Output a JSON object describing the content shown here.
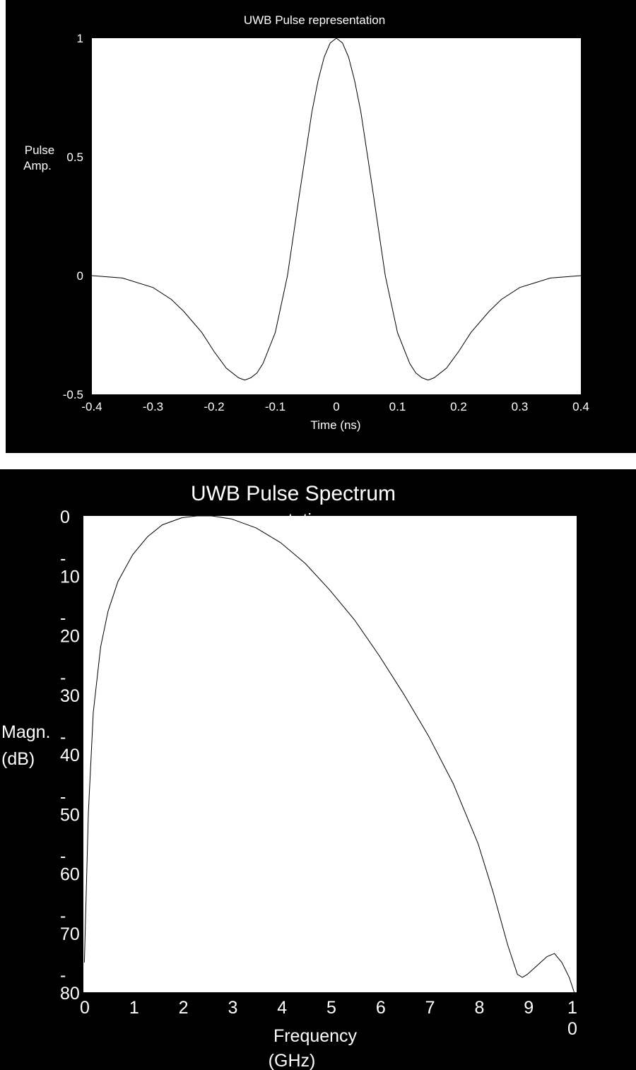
{
  "chart_data": [
    {
      "type": "line",
      "title": "UWB Pulse representation",
      "xlabel": "Time (ns)",
      "ylabel_line1": "Pulse",
      "ylabel_line2": "Amp.",
      "xlim": [
        -0.4,
        0.4
      ],
      "ylim": [
        -0.5,
        1
      ],
      "x_ticks": [
        "-0.4",
        "-0.3",
        "-0.2",
        "-0.1",
        "0",
        "0.1",
        "0.2",
        "0.3",
        "0.4"
      ],
      "y_ticks": [
        "1",
        "0.5",
        "0",
        "-0.5"
      ],
      "series": [
        {
          "x": [
            -0.4,
            -0.35,
            -0.3,
            -0.27,
            -0.25,
            -0.22,
            -0.2,
            -0.18,
            -0.16,
            -0.15,
            -0.14,
            -0.13,
            -0.12,
            -0.1,
            -0.08,
            -0.06,
            -0.05,
            -0.04,
            -0.03,
            -0.02,
            -0.01,
            0,
            0.01,
            0.02,
            0.03,
            0.04,
            0.05,
            0.06,
            0.08,
            0.1,
            0.12,
            0.13,
            0.14,
            0.15,
            0.16,
            0.18,
            0.2,
            0.22,
            0.25,
            0.27,
            0.3,
            0.35,
            0.4
          ],
          "y": [
            0,
            -0.01,
            -0.05,
            -0.1,
            -0.15,
            -0.24,
            -0.32,
            -0.39,
            -0.43,
            -0.44,
            -0.43,
            -0.41,
            -0.37,
            -0.24,
            0.0,
            0.35,
            0.52,
            0.69,
            0.82,
            0.92,
            0.98,
            1.0,
            0.98,
            0.92,
            0.82,
            0.69,
            0.52,
            0.35,
            0.0,
            -0.24,
            -0.37,
            -0.41,
            -0.43,
            -0.44,
            -0.43,
            -0.39,
            -0.32,
            -0.24,
            -0.15,
            -0.1,
            -0.05,
            -0.01,
            0
          ]
        }
      ]
    },
    {
      "type": "line",
      "title": "UWB Pulse Spectrum",
      "title_overlap_fragment": "presentation",
      "xlabel_line1": "Frequency",
      "xlabel_line2": "(GHz)",
      "ylabel_line1": "Magn.",
      "ylabel_line2": "(dB)",
      "xlim": [
        0,
        10
      ],
      "ylim": [
        -80,
        0
      ],
      "x_ticks": [
        {
          "value": 0,
          "label": "0"
        },
        {
          "value": 1,
          "label": "1"
        },
        {
          "value": 2,
          "label": "2"
        },
        {
          "value": 3,
          "label": "3"
        },
        {
          "value": 4,
          "label": "4"
        },
        {
          "value": 5,
          "label": "5"
        },
        {
          "value": 6,
          "label": "6"
        },
        {
          "value": 7,
          "label": "7"
        },
        {
          "value": 8,
          "label": "8"
        },
        {
          "value": 9,
          "label": "9"
        },
        {
          "value": 10,
          "label_line1": "1",
          "label_line2": "0"
        }
      ],
      "y_ticks": [
        {
          "value": 0,
          "label_line1": "",
          "label_line2": "0"
        },
        {
          "value": -10,
          "label_line1": "-",
          "label_line2": "10"
        },
        {
          "value": -20,
          "label_line1": "-",
          "label_line2": "20"
        },
        {
          "value": -30,
          "label_line1": "-",
          "label_line2": "30"
        },
        {
          "value": -40,
          "label_line1": "-",
          "label_line2": "40"
        },
        {
          "value": -50,
          "label_line1": "-",
          "label_line2": "50"
        },
        {
          "value": -60,
          "label_line1": "-",
          "label_line2": "60"
        },
        {
          "value": -70,
          "label_line1": "-",
          "label_line2": "70"
        },
        {
          "value": -80,
          "label_line1": "-",
          "label_line2": "80"
        }
      ],
      "series": [
        {
          "x": [
            0.02,
            0.1,
            0.2,
            0.35,
            0.5,
            0.7,
            1.0,
            1.3,
            1.6,
            2.0,
            2.3,
            2.6,
            3.0,
            3.5,
            4.0,
            4.5,
            5.0,
            5.5,
            6.0,
            6.5,
            7.0,
            7.5,
            8.0,
            8.3,
            8.6,
            8.8,
            8.9,
            9.0,
            9.2,
            9.4,
            9.55,
            9.7,
            9.85,
            9.95
          ],
          "y": [
            -75,
            -50,
            -33,
            -22,
            -16,
            -11,
            -6.5,
            -3.5,
            -1.5,
            -0.3,
            0,
            0,
            -0.5,
            -2,
            -4.5,
            -8,
            -12.5,
            -17.5,
            -23.5,
            -30,
            -37,
            -45,
            -55,
            -63,
            -72,
            -77,
            -77.5,
            -77,
            -75.5,
            -74,
            -73.5,
            -75,
            -77.5,
            -80
          ]
        }
      ]
    }
  ]
}
